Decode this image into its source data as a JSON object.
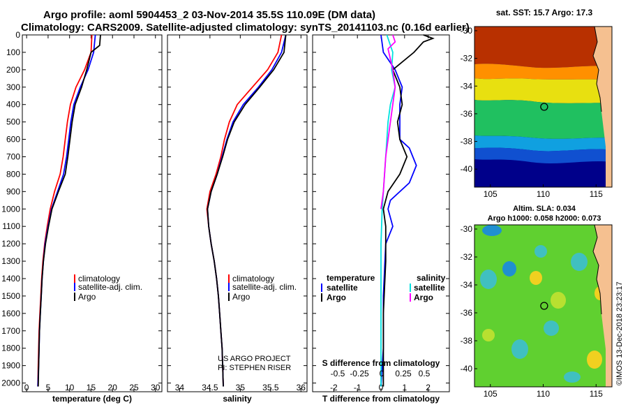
{
  "header": {
    "line1": "Argo profile: aoml 5904453_2 03-Nov-2014 35.5S 110.09E (DM data)",
    "line2": "Climatology: CARS2009. Satellite-adjusted climatology: synTS_20141103.nc (0.16d earlier)"
  },
  "credits": {
    "project": "US ARGO PROJECT",
    "pi": "PI: STEPHEN RISER",
    "side_stamp": "©IMOS 13-Dec-2018 23:23:17"
  },
  "colors": {
    "climatology": "#ff0000",
    "satellite": "#0000ff",
    "argo": "#000000",
    "sal_satellite": "#00e0e0",
    "sal_argo": "#ff00ff"
  },
  "chart_data": [
    {
      "type": "line",
      "name": "temperature_profile",
      "xlabel": "temperature (deg C)",
      "xlim": [
        -1,
        31.5
      ],
      "ylim": [
        0,
        2050
      ],
      "x_ticks": [
        0,
        5,
        10,
        15,
        20,
        25,
        30
      ],
      "y_ticks": [
        0,
        100,
        200,
        300,
        400,
        500,
        600,
        700,
        800,
        900,
        1000,
        1100,
        1200,
        1300,
        1400,
        1500,
        1600,
        1700,
        1800,
        1900,
        2000
      ],
      "legend": [
        "climatology",
        "satellite-adj. clim.",
        "Argo"
      ],
      "series": [
        {
          "name": "climatology",
          "color": "#ff0000",
          "points": [
            [
              15.2,
              0
            ],
            [
              15.0,
              100
            ],
            [
              13.5,
              200
            ],
            [
              11.5,
              300
            ],
            [
              10.2,
              400
            ],
            [
              9.5,
              500
            ],
            [
              9.0,
              600
            ],
            [
              8.5,
              700
            ],
            [
              7.8,
              800
            ],
            [
              6.5,
              900
            ],
            [
              5.5,
              1000
            ],
            [
              4.8,
              1100
            ],
            [
              4.2,
              1200
            ],
            [
              3.8,
              1300
            ],
            [
              3.5,
              1400
            ],
            [
              3.3,
              1500
            ],
            [
              3.1,
              1600
            ],
            [
              2.9,
              1700
            ],
            [
              2.8,
              1800
            ],
            [
              2.7,
              1900
            ],
            [
              2.6,
              2020
            ]
          ]
        },
        {
          "name": "satellite-adj. clim.",
          "color": "#0000ff",
          "points": [
            [
              16.0,
              0
            ],
            [
              15.6,
              100
            ],
            [
              14.3,
              200
            ],
            [
              12.5,
              300
            ],
            [
              11.0,
              400
            ],
            [
              10.3,
              500
            ],
            [
              9.8,
              600
            ],
            [
              9.3,
              700
            ],
            [
              8.6,
              800
            ],
            [
              7.2,
              900
            ],
            [
              5.8,
              1000
            ],
            [
              5.0,
              1100
            ],
            [
              4.3,
              1200
            ],
            [
              3.9,
              1300
            ],
            [
              3.6,
              1400
            ],
            [
              3.4,
              1500
            ],
            [
              3.2,
              1600
            ],
            [
              3.0,
              1700
            ],
            [
              2.9,
              1800
            ],
            [
              2.8,
              1900
            ],
            [
              2.6,
              2020
            ]
          ]
        },
        {
          "name": "Argo",
          "color": "#000000",
          "points": [
            [
              17.2,
              0
            ],
            [
              17.0,
              60
            ],
            [
              15.0,
              100
            ],
            [
              14.0,
              200
            ],
            [
              12.8,
              300
            ],
            [
              11.3,
              400
            ],
            [
              10.6,
              500
            ],
            [
              10.1,
              600
            ],
            [
              9.6,
              700
            ],
            [
              9.0,
              800
            ],
            [
              7.4,
              900
            ],
            [
              5.9,
              1000
            ],
            [
              5.1,
              1100
            ],
            [
              4.4,
              1200
            ],
            [
              3.9,
              1300
            ],
            [
              3.6,
              1400
            ],
            [
              3.4,
              1500
            ],
            [
              3.2,
              1600
            ],
            [
              3.0,
              1700
            ],
            [
              2.9,
              1800
            ],
            [
              2.8,
              1900
            ],
            [
              2.7,
              2020
            ]
          ]
        }
      ]
    },
    {
      "type": "line",
      "name": "salinity_profile",
      "xlabel": "salinity",
      "xlim": [
        33.8,
        36.1
      ],
      "ylim": [
        0,
        2050
      ],
      "x_ticks": [
        34,
        34.5,
        35,
        35.5,
        36
      ],
      "legend": [
        "climatology",
        "satellite-adj. clim.",
        "Argo"
      ],
      "series": [
        {
          "name": "climatology",
          "color": "#ff0000",
          "points": [
            [
              35.68,
              0
            ],
            [
              35.62,
              100
            ],
            [
              35.45,
              200
            ],
            [
              35.2,
              300
            ],
            [
              34.95,
              400
            ],
            [
              34.82,
              500
            ],
            [
              34.74,
              600
            ],
            [
              34.68,
              700
            ],
            [
              34.6,
              800
            ],
            [
              34.5,
              900
            ],
            [
              34.45,
              1000
            ],
            [
              34.48,
              1100
            ],
            [
              34.52,
              1200
            ],
            [
              34.57,
              1300
            ],
            [
              34.61,
              1400
            ],
            [
              34.64,
              1500
            ],
            [
              34.66,
              1600
            ],
            [
              34.68,
              1700
            ],
            [
              34.7,
              1800
            ],
            [
              34.71,
              1900
            ],
            [
              34.72,
              2020
            ]
          ]
        },
        {
          "name": "satellite-adj. clim.",
          "color": "#0000ff",
          "points": [
            [
              35.75,
              0
            ],
            [
              35.68,
              100
            ],
            [
              35.52,
              200
            ],
            [
              35.3,
              300
            ],
            [
              35.05,
              400
            ],
            [
              34.88,
              500
            ],
            [
              34.78,
              600
            ],
            [
              34.7,
              700
            ],
            [
              34.62,
              800
            ],
            [
              34.52,
              900
            ],
            [
              34.46,
              1000
            ],
            [
              34.48,
              1100
            ],
            [
              34.52,
              1200
            ],
            [
              34.57,
              1300
            ],
            [
              34.61,
              1400
            ],
            [
              34.64,
              1500
            ],
            [
              34.66,
              1600
            ],
            [
              34.68,
              1700
            ],
            [
              34.7,
              1800
            ],
            [
              34.71,
              1900
            ],
            [
              34.72,
              2020
            ]
          ]
        },
        {
          "name": "Argo",
          "color": "#000000",
          "points": [
            [
              35.75,
              0
            ],
            [
              35.72,
              100
            ],
            [
              35.55,
              200
            ],
            [
              35.32,
              300
            ],
            [
              35.08,
              400
            ],
            [
              34.9,
              500
            ],
            [
              34.79,
              600
            ],
            [
              34.71,
              700
            ],
            [
              34.62,
              800
            ],
            [
              34.52,
              900
            ],
            [
              34.46,
              1000
            ],
            [
              34.48,
              1100
            ],
            [
              34.52,
              1200
            ],
            [
              34.57,
              1300
            ],
            [
              34.61,
              1400
            ],
            [
              34.64,
              1500
            ],
            [
              34.66,
              1600
            ],
            [
              34.68,
              1700
            ],
            [
              34.7,
              1800
            ],
            [
              34.71,
              1900
            ],
            [
              34.72,
              2020
            ]
          ]
        }
      ]
    },
    {
      "type": "line",
      "name": "difference_profile",
      "xlabel": "T difference from climatology",
      "xlabel_top": "S difference from climatology",
      "xlim": [
        -2.9,
        2.9
      ],
      "ylim": [
        0,
        2050
      ],
      "x_ticks": [
        -2,
        -1,
        0,
        1,
        2
      ],
      "x_ticks_top": [
        "-0.5",
        "-0.25",
        "0",
        "0.25",
        "0.5"
      ],
      "legend_left_title": "temperature",
      "legend_right_title": "salinity",
      "legend": [
        "satellite",
        "Argo",
        "satellite",
        "Argo"
      ],
      "series": [
        {
          "name": "T satellite",
          "color": "#0000ff",
          "points": [
            [
              0.0,
              0
            ],
            [
              0.1,
              100
            ],
            [
              0.6,
              200
            ],
            [
              0.9,
              300
            ],
            [
              0.8,
              400
            ],
            [
              0.8,
              500
            ],
            [
              0.8,
              600
            ],
            [
              1.2,
              650
            ],
            [
              1.5,
              750
            ],
            [
              1.2,
              850
            ],
            [
              0.4,
              950
            ],
            [
              0.3,
              1000
            ],
            [
              0.5,
              1100
            ],
            [
              0.2,
              1200
            ],
            [
              0.1,
              1500
            ],
            [
              0.1,
              1800
            ],
            [
              0.0,
              2020
            ]
          ]
        },
        {
          "name": "T Argo",
          "color": "#000000",
          "points": [
            [
              1.8,
              0
            ],
            [
              2.2,
              20
            ],
            [
              1.8,
              40
            ],
            [
              1.4,
              100
            ],
            [
              0.5,
              200
            ],
            [
              0.8,
              300
            ],
            [
              0.9,
              400
            ],
            [
              0.7,
              500
            ],
            [
              0.8,
              600
            ],
            [
              1.1,
              700
            ],
            [
              0.8,
              800
            ],
            [
              0.3,
              900
            ],
            [
              0.1,
              1000
            ],
            [
              0.2,
              1100
            ],
            [
              0.2,
              1300
            ],
            [
              0.1,
              1600
            ],
            [
              0.1,
              2020
            ]
          ]
        },
        {
          "name": "S satellite",
          "color": "#00e0e0",
          "points": [
            [
              0.25,
              0
            ],
            [
              0.5,
              100
            ],
            [
              0.45,
              200
            ],
            [
              0.6,
              300
            ],
            [
              0.4,
              400
            ],
            [
              0.3,
              500
            ],
            [
              0.2,
              700
            ],
            [
              0.1,
              900
            ],
            [
              0.05,
              1000
            ],
            [
              0.0,
              1200
            ],
            [
              0.0,
              1600
            ],
            [
              0.0,
              2020
            ]
          ]
        },
        {
          "name": "S Argo",
          "color": "#ff00ff",
          "points": [
            [
              0.5,
              0
            ],
            [
              0.6,
              40
            ],
            [
              0.3,
              80
            ],
            [
              0.5,
              200
            ],
            [
              0.6,
              300
            ],
            [
              0.5,
              400
            ],
            [
              0.4,
              500
            ],
            [
              0.2,
              700
            ],
            [
              0.1,
              900
            ],
            [
              0.0,
              1000
            ]
          ]
        }
      ]
    },
    {
      "type": "heatmap",
      "name": "sst_map",
      "title": "sat. SST: 15.7 Argo: 17.3",
      "xlim": [
        103.5,
        116.5
      ],
      "ylim": [
        -41.3,
        -29.7
      ],
      "x_ticks": [
        105,
        110,
        115
      ],
      "y_ticks": [
        -30,
        -32,
        -34,
        -36,
        -38,
        -40
      ],
      "marker": [
        110.09,
        -35.5
      ]
    },
    {
      "type": "heatmap",
      "name": "sla_map",
      "title_line1": "Altim. SLA: 0.034",
      "title_line2": "Argo h1000: 0.058 h2000: 0.073",
      "xlim": [
        103.5,
        116.5
      ],
      "ylim": [
        -41.3,
        -29.7
      ],
      "x_ticks": [
        105,
        110,
        115
      ],
      "y_ticks": [
        -30,
        -32,
        -34,
        -36,
        -38,
        -40
      ],
      "marker": [
        110.09,
        -35.5
      ]
    }
  ]
}
